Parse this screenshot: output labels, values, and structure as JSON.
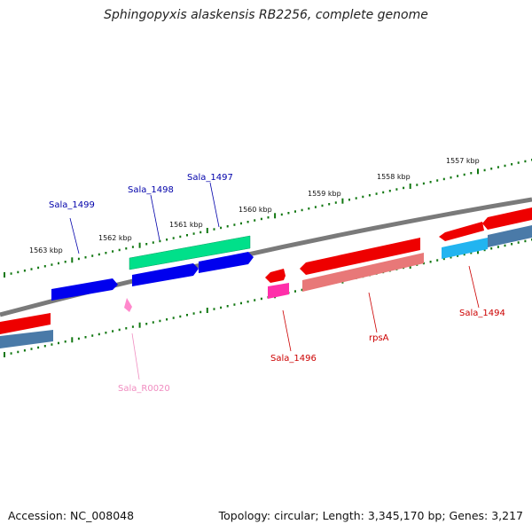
{
  "title": "Sphingopyxis alaskensis RB2256, complete genome",
  "footer": {
    "accession": "Accession: NC_008048",
    "summary": "Topology: circular; Length: 3,345,170 bp; Genes: 3,217"
  },
  "ruler": [
    {
      "label": "1557 kbp"
    },
    {
      "label": "1558 kbp"
    },
    {
      "label": "1559 kbp"
    },
    {
      "label": "1560 kbp"
    },
    {
      "label": "1561 kbp"
    },
    {
      "label": "1562 kbp"
    },
    {
      "label": "1563 kbp"
    }
  ],
  "genes": [
    {
      "label": "Sala_1494",
      "color": "#cc0000"
    },
    {
      "label": "rpsA",
      "color": "#cc0000"
    },
    {
      "label": "Sala_1496",
      "color": "#cc0000"
    },
    {
      "label": "Sala_1497",
      "color": "#0000aa"
    },
    {
      "label": "Sala_1498",
      "color": "#0000aa"
    },
    {
      "label": "Sala_1499",
      "color": "#0000aa"
    },
    {
      "label": "Sala_R0020",
      "color": "#f08cc0"
    }
  ],
  "colors": {
    "forward_cds": "#0000ee",
    "reverse_cds": "#ee0000",
    "rrna_like": "#00ee99",
    "pink_feature": "#ff66cc",
    "steelblue_feature": "#4477aa",
    "cyan_feature": "#22aaee",
    "salmon_feature": "#e88080",
    "ruler_ticks": "#117711",
    "backbone": "#777777"
  }
}
